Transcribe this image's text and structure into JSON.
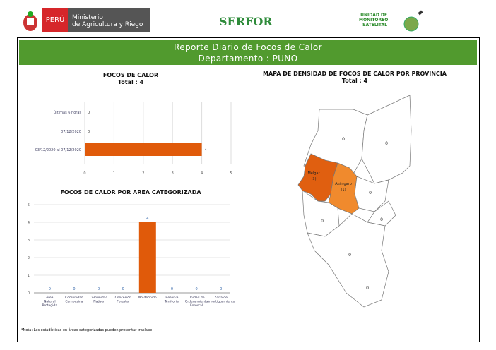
{
  "header": {
    "peru": "PERÚ",
    "ministry_line1": "Ministerio",
    "ministry_line2": "de Agricultura y Riego",
    "serfor": "SERFOR",
    "unit": [
      "UNIDAD DE",
      "MONITOREO",
      "SATELITAL"
    ]
  },
  "banner": {
    "title": "Reporte Diario de Focos de Calor",
    "subtitle": "Departamento : PUNO"
  },
  "colors": {
    "green": "#519a2e",
    "bar": "#e05a0a",
    "melgar": "#e05f10",
    "azangaro": "#f08a2d"
  },
  "chart_data": [
    {
      "type": "bar",
      "orientation": "horizontal",
      "title": "FOCOS DE CALOR",
      "subtitle": "Total : 4",
      "categories": [
        "Últimas 6 horas",
        "07/12/2020",
        "03/12/2020 al 07/12/2020"
      ],
      "values": [
        0,
        0,
        4
      ],
      "xlim": [
        0,
        5
      ],
      "xticks": [
        "0",
        "1",
        "2",
        "3",
        "4",
        "5"
      ]
    },
    {
      "type": "bar",
      "title": "FOCOS DE CALOR POR AREA CATEGORIZADA",
      "categories": [
        "Área Natural Protegida",
        "Comunidad Campesina",
        "Comunidad Nativa",
        "Concesión Forestal",
        "No definido",
        "Reserva Territorial",
        "Unidad de Ordenamiento Forestal",
        "Zona de Amortiguamiento"
      ],
      "values": [
        0,
        0,
        0,
        0,
        4,
        0,
        0,
        0
      ],
      "ylim": [
        0,
        5
      ],
      "yticks": [
        "0",
        "1",
        "2",
        "3",
        "4",
        "5"
      ]
    }
  ],
  "note": "*Nota: Las estadísticas en áreas categorizadas pueden presentar traslape",
  "map": {
    "title": "MAPA DE DENSIDAD DE FOCOS DE CALOR POR PROVINCIA",
    "total": "Total : 4",
    "provinces": [
      {
        "name": "Melgar",
        "value": "(3)"
      },
      {
        "name": "Azángaro",
        "value": "(1)"
      }
    ],
    "zero_label": "0"
  }
}
